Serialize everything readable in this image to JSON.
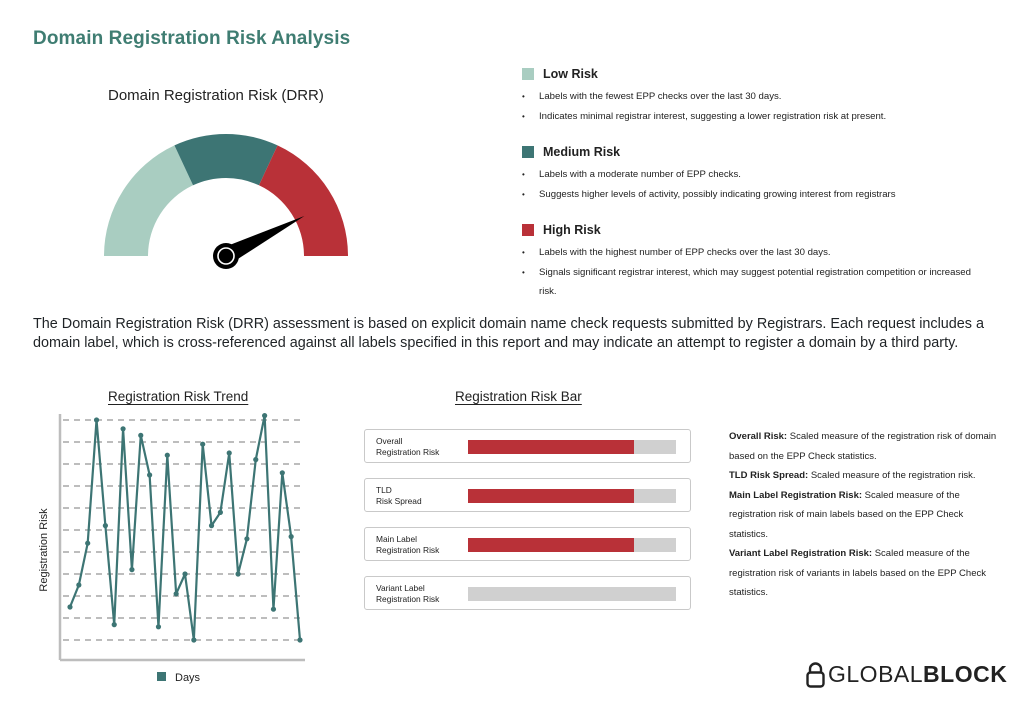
{
  "page": {
    "title": "Domain Registration Risk Analysis"
  },
  "gauge": {
    "title": "Domain Registration Risk (DRR)",
    "level_fraction": 0.85,
    "segments": [
      "low",
      "medium",
      "high"
    ]
  },
  "colors": {
    "title": "#3f7d72",
    "low": "#a9cdc1",
    "medium": "#3d7574",
    "high": "#b93138",
    "line": "#3d7574",
    "bar_track": "#d0d0d0"
  },
  "legend": [
    {
      "key": "low",
      "title": "Low Risk",
      "bullets": [
        "Labels with the fewest EPP checks over the last 30 days.",
        "Indicates minimal registrar interest, suggesting a lower registration risk at present."
      ]
    },
    {
      "key": "medium",
      "title": "Medium Risk",
      "bullets": [
        "Labels with a moderate number of EPP checks.",
        "Suggests higher levels of activity, possibly indicating growing interest from registrars"
      ]
    },
    {
      "key": "high",
      "title": "High Risk",
      "bullets": [
        "Labels with the highest number of EPP checks over the last 30 days.",
        "Signals significant registrar interest, which may suggest potential registration competition or increased risk."
      ]
    }
  ],
  "intro": "The Domain Registration Risk (DRR) assessment is based on explicit domain name check requests submitted by Registrars. Each request includes a domain label, which is cross-referenced against all labels specified in this report and may indicate an attempt to register a domain by a third party.",
  "trend": {
    "title": "Registration Risk Trend"
  },
  "chart_data": {
    "type": "line",
    "title": "Registration Risk Trend",
    "xlabel": "Days",
    "ylabel": "Registration Risk",
    "legend": [
      "Days"
    ],
    "legend_placement": "bottom",
    "grid": "horizontal dashed",
    "ylim": [
      0,
      10
    ],
    "values": [
      1.5,
      2.5,
      4.4,
      10,
      5.2,
      0.7,
      9.6,
      3.2,
      9.3,
      7.5,
      0.6,
      8.4,
      2.1,
      3.0,
      0,
      8.9,
      5.2,
      5.8,
      8.5,
      3.0,
      4.6,
      8.2,
      10.2,
      1.4,
      7.6,
      4.7,
      0
    ]
  },
  "risk_bar": {
    "title": "Registration Risk Bar",
    "rows": [
      {
        "label_line1": "Overall",
        "label_line2": "Registration Risk",
        "value": 0.8
      },
      {
        "label_line1": "TLD",
        "label_line2": "Risk Spread",
        "value": 0.8
      },
      {
        "label_line1": "Main Label",
        "label_line2": "Registration Risk",
        "value": 0.8
      },
      {
        "label_line1": "Variant Label",
        "label_line2": "Registration Risk",
        "value": 0
      }
    ]
  },
  "definitions": [
    {
      "term": "Overall Risk:",
      "text": " Scaled measure of the registration risk of domain based on the EPP Check statistics."
    },
    {
      "term": "TLD Risk Spread:",
      "text": " Scaled measure of the registration risk."
    },
    {
      "term": "Main Label Registration Risk:",
      "text": " Scaled measure of the registration risk of main labels based on the EPP Check statistics."
    },
    {
      "term": "Variant Label Registration Risk:",
      "text": " Scaled measure of the registration risk of variants in labels based on the EPP Check statistics."
    }
  ],
  "logo": {
    "part1": "GLOBAL",
    "part2": "BLOCK",
    "icon": "padlock-icon"
  }
}
